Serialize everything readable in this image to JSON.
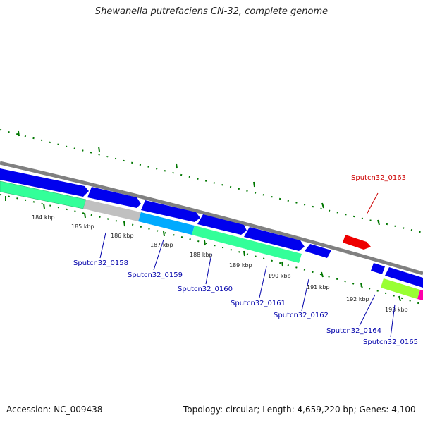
{
  "title": "Shewanella putrefaciens CN-32, complete genome",
  "footer": {
    "accession": "Accession: NC_009438",
    "summary": "Topology: circular; Length: 4,659,220 bp; Genes: 4,100"
  },
  "colors": {
    "background": "#ffffff",
    "backbone": "#808080",
    "cds_forward": "#0000ee",
    "cds_reverse": "#0000ee",
    "rrna_red": "#ee0000",
    "cog_teal": "#33ff99",
    "cog_grey": "#c0c0c0",
    "cog_cyan": "#00aaff",
    "cog_lime": "#99ff33",
    "cog_magenta": "#ff00aa",
    "tick": "#007700",
    "label_blue": "#0000aa",
    "label_red": "#cc0000"
  },
  "ticks": [
    "184 kbp",
    "185 kbp",
    "186 kbp",
    "187 kbp",
    "188 kbp",
    "189 kbp",
    "190 kbp",
    "191 kbp",
    "192 kbp",
    "193 kbp"
  ],
  "genes": [
    {
      "label": "Sputcn32_0158",
      "color": "blue"
    },
    {
      "label": "Sputcn32_0159",
      "color": "blue"
    },
    {
      "label": "Sputcn32_0160",
      "color": "blue"
    },
    {
      "label": "Sputcn32_0161",
      "color": "blue"
    },
    {
      "label": "Sputcn32_0162",
      "color": "blue"
    },
    {
      "label": "Sputcn32_0163",
      "color": "red"
    },
    {
      "label": "Sputcn32_0164",
      "color": "blue"
    },
    {
      "label": "Sputcn32_0165",
      "color": "blue"
    }
  ]
}
